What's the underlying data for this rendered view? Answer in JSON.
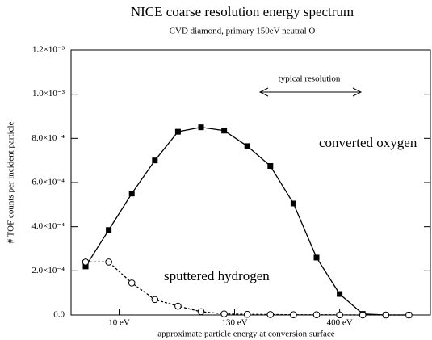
{
  "chart_data": {
    "type": "line",
    "title": "NICE coarse resolution energy spectrum",
    "subtitle": "CVD diamond, primary 150eV neutral O",
    "x_label": "approximate particle energy at conversion surface",
    "y_label": "# TOF counts per incident particle",
    "x": [
      0,
      1,
      2,
      3,
      4,
      5,
      6,
      7,
      8,
      9,
      10,
      11,
      12,
      13,
      14
    ],
    "series": [
      {
        "name": "converted oxygen",
        "color": "#000000",
        "marker": "filled-square",
        "dashed": false,
        "values": [
          0.00022,
          0.000385,
          0.00055,
          0.0007,
          0.00083,
          0.00085,
          0.000835,
          0.000765,
          0.000675,
          0.000505,
          0.00026,
          9.5e-05,
          5e-06,
          0,
          0
        ]
      },
      {
        "name": "sputtered hydrogen",
        "color": "#000000",
        "marker": "open-circle",
        "dashed": true,
        "values": [
          0.00024,
          0.00024,
          0.000145,
          7e-05,
          4e-05,
          1.5e-05,
          5e-06,
          3e-06,
          2e-06,
          1e-06,
          1e-06,
          5e-07,
          0,
          0,
          0
        ]
      }
    ],
    "annotation": "typical resolution",
    "xlim": [
      -0.63,
      14.93
    ],
    "xticks": [
      {
        "value": 1.45,
        "label": "10 eV"
      },
      {
        "value": 6.45,
        "label": "130 eV"
      },
      {
        "value": 11,
        "label": "400 eV"
      }
    ],
    "ylim": [
      0,
      0.0012
    ],
    "yticks": [
      {
        "value": 0,
        "label": "0.0"
      },
      {
        "value": 0.0002,
        "label": "2.0×10⁻⁴"
      },
      {
        "value": 0.0004,
        "label": "4.0×10⁻⁴"
      },
      {
        "value": 0.0006,
        "label": "6.0×10⁻⁴"
      },
      {
        "value": 0.0008,
        "label": "8.0×10⁻⁴"
      },
      {
        "value": 0.001,
        "label": "1.0×10⁻³"
      },
      {
        "value": 0.0012,
        "label": "1.2×10⁻³"
      }
    ]
  }
}
